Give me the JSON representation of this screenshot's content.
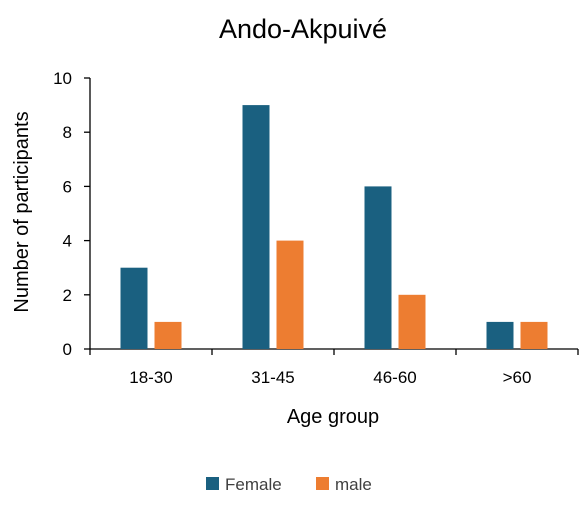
{
  "chart_data": {
    "type": "bar",
    "title": "Ando-Akpuivé",
    "xlabel": "Age group",
    "ylabel": "Number of participants",
    "categories": [
      "18-30",
      "31-45",
      "46-60",
      ">60"
    ],
    "series": [
      {
        "name": "Female",
        "values": [
          3,
          9,
          6,
          1
        ],
        "color": "#1a6080"
      },
      {
        "name": "male",
        "values": [
          1,
          4,
          2,
          1
        ],
        "color": "#ed7d31"
      }
    ],
    "ylim": [
      0,
      10
    ],
    "yticks": [
      0,
      2,
      4,
      6,
      8,
      10
    ],
    "grid": false,
    "legend": "bottom"
  }
}
